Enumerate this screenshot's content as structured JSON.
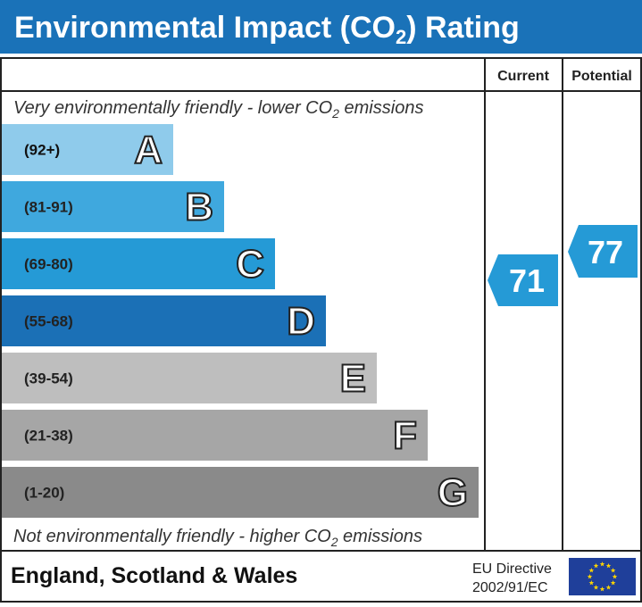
{
  "header": {
    "title": {
      "before": "Environmental Impact (CO",
      "sub": "2",
      "after": ") Rating"
    }
  },
  "columns": {
    "current": "Current",
    "potential": "Potential"
  },
  "top_note": {
    "before": "Very environmentally friendly - lower CO",
    "sub": "2",
    "after": " emissions"
  },
  "bottom_note": {
    "before": "Not environmentally friendly - higher CO",
    "sub": "2",
    "after": " emissions"
  },
  "bands": [
    {
      "range": "(92+)",
      "letter": "A",
      "color": "#8fcbeb"
    },
    {
      "range": "(81-91)",
      "letter": "B",
      "color": "#3fa8de"
    },
    {
      "range": "(69-80)",
      "letter": "C",
      "color": "#259ad6"
    },
    {
      "range": "(55-68)",
      "letter": "D",
      "color": "#1b70b6"
    },
    {
      "range": "(39-54)",
      "letter": "E",
      "color": "#bebebe"
    },
    {
      "range": "(21-38)",
      "letter": "F",
      "color": "#a6a6a6"
    },
    {
      "range": "(1-20)",
      "letter": "G",
      "color": "#8a8a8a"
    }
  ],
  "current": "71",
  "potential": "77",
  "footer": {
    "region": "England, Scotland & Wales",
    "directive_line1": "EU Directive",
    "directive_line2": "2002/91/EC"
  }
}
